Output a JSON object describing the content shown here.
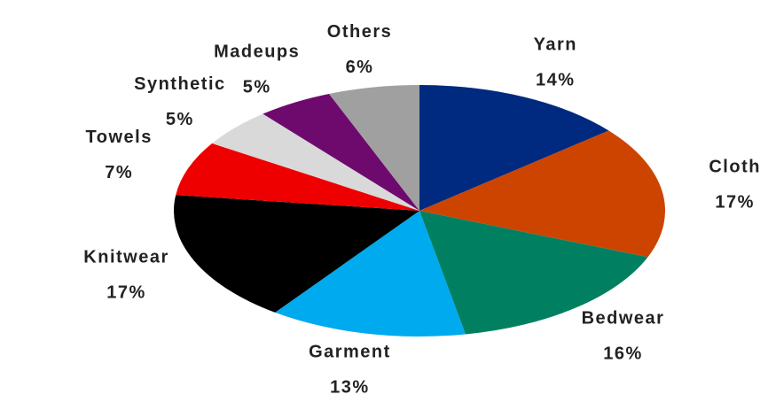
{
  "chart_data": {
    "type": "pie",
    "categories": [
      "Yarn",
      "Cloth",
      "Bedwear",
      "Garment",
      "Knitwear",
      "Towels",
      "Synthetic",
      "Madeups",
      "Others"
    ],
    "values": [
      14,
      17,
      16,
      13,
      17,
      7,
      5,
      5,
      6
    ],
    "value_labels": [
      "14%",
      "17%",
      "16%",
      "13%",
      "17%",
      "7%",
      "5%",
      "5%",
      "6%"
    ],
    "colors": [
      "#002a7f",
      "#cc4400",
      "#008060",
      "#00aaee",
      "#000000",
      "#ee0000",
      "#d9d9d9",
      "#6e0a6e",
      "#a0a0a0"
    ]
  }
}
